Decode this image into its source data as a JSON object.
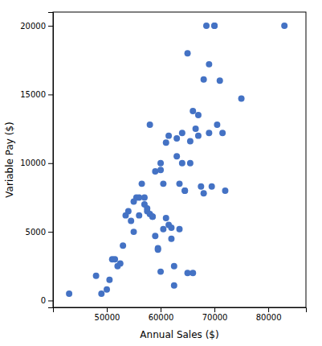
{
  "chart_data": {
    "type": "scatter",
    "x": [
      43000,
      48000,
      49000,
      50000,
      50500,
      51000,
      51500,
      52000,
      52500,
      53000,
      53500,
      54000,
      54500,
      55000,
      55000,
      55500,
      56000,
      56000,
      56500,
      57000,
      57000,
      57500,
      57500,
      58000,
      58000,
      58500,
      58500,
      59000,
      59000,
      59500,
      59500,
      60000,
      60000,
      60000,
      60500,
      60500,
      61000,
      61000,
      61500,
      61500,
      62000,
      62000,
      62500,
      62500,
      63000,
      63000,
      63500,
      63500,
      64000,
      64000,
      64500,
      64500,
      65000,
      65000,
      65500,
      65500,
      66000,
      66000,
      66500,
      67000,
      67000,
      67500,
      68000,
      68000,
      68500,
      69000,
      69000,
      69500,
      70000,
      70000,
      70500,
      71000,
      71500,
      72000,
      75000,
      83000
    ],
    "y": [
      500,
      1800,
      500,
      800,
      1500,
      3000,
      3000,
      2500,
      2700,
      4000,
      6200,
      6500,
      5800,
      5000,
      7200,
      7500,
      7500,
      6200,
      8500,
      7500,
      7000,
      6700,
      6500,
      12800,
      6300,
      6100,
      6100,
      9400,
      4700,
      3800,
      3700,
      10000,
      9500,
      2100,
      8500,
      5200,
      11500,
      6000,
      12000,
      5500,
      5300,
      4500,
      2500,
      1100,
      11800,
      10500,
      8500,
      5200,
      12200,
      10000,
      8000,
      8000,
      18000,
      2000,
      11600,
      10000,
      13800,
      2000,
      12500,
      13500,
      12000,
      8300,
      16100,
      7800,
      20000,
      17200,
      12200,
      8300,
      20000,
      20000,
      12800,
      16000,
      12200,
      8000,
      14700,
      20000
    ],
    "color": "#4472C4",
    "marker": "circle",
    "xlabel": "Annual Sales ($)",
    "ylabel": "Variable Pay ($)",
    "xlim": [
      40000,
      87000
    ],
    "ylim": [
      -500,
      21000
    ],
    "xticks": [
      50000,
      60000,
      70000,
      80000
    ],
    "yticks": [
      0,
      5000,
      10000,
      15000,
      20000
    ]
  }
}
